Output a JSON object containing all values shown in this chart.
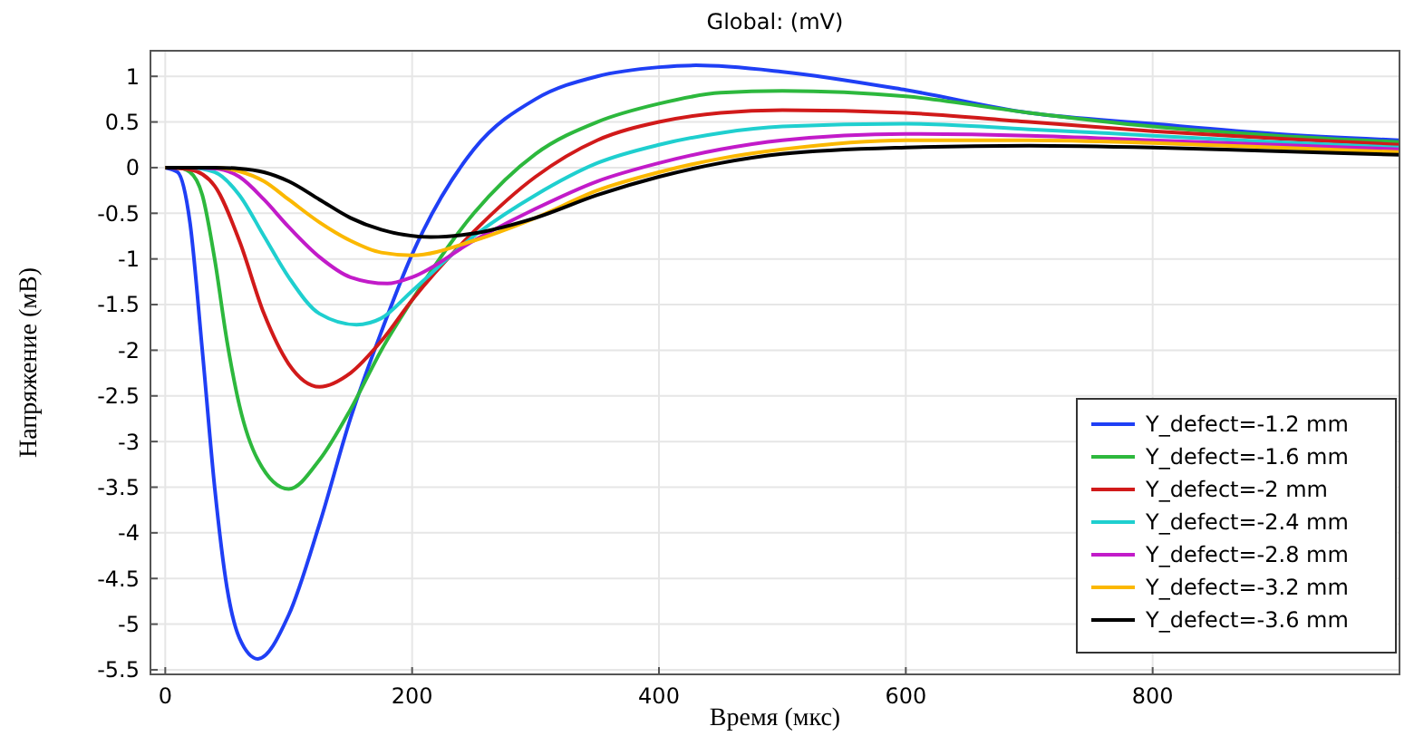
{
  "chart_data": {
    "type": "line",
    "title": "Global:  (mV)",
    "xlabel": "Время (мкс)",
    "ylabel": "Напряжение (мВ)",
    "xlim": [
      -12,
      1000
    ],
    "ylim": [
      -5.55,
      1.28
    ],
    "xticks": [
      0,
      200,
      400,
      600,
      800
    ],
    "yticks": [
      1,
      0.5,
      0,
      -0.5,
      -1,
      -1.5,
      -2,
      -2.5,
      -3,
      -3.5,
      -4,
      -4.5,
      -5,
      -5.5
    ],
    "grid": true,
    "legend": "bottom right",
    "marker": "none",
    "line_style": "solid",
    "series": [
      {
        "name": "Y_defect=-1.2 mm",
        "color": "#1f3ff5",
        "x": [
          0,
          10,
          20,
          30,
          40,
          50,
          60,
          75,
          100,
          125,
          150,
          175,
          200,
          250,
          300,
          350,
          400,
          430,
          500,
          600,
          700,
          800,
          900,
          1000
        ],
        "values": [
          0,
          -0.05,
          -0.6,
          -2.0,
          -3.5,
          -4.6,
          -5.15,
          -5.38,
          -4.9,
          -3.9,
          -2.75,
          -1.8,
          -0.95,
          0.2,
          0.75,
          1.0,
          1.1,
          1.12,
          1.05,
          0.85,
          0.6,
          0.48,
          0.37,
          0.3
        ]
      },
      {
        "name": "Y_defect=-1.6 mm",
        "color": "#2db83d",
        "x": [
          0,
          10,
          20,
          30,
          40,
          50,
          60,
          75,
          100,
          125,
          150,
          175,
          200,
          250,
          300,
          350,
          400,
          450,
          500,
          600,
          700,
          800,
          900,
          1000
        ],
        "values": [
          0,
          0,
          -0.05,
          -0.3,
          -1.0,
          -1.9,
          -2.6,
          -3.2,
          -3.52,
          -3.2,
          -2.65,
          -2.0,
          -1.45,
          -0.5,
          0.15,
          0.5,
          0.7,
          0.82,
          0.84,
          0.78,
          0.6,
          0.45,
          0.35,
          0.28
        ]
      },
      {
        "name": "Y_defect=-2 mm",
        "color": "#d11a1a",
        "x": [
          0,
          20,
          40,
          60,
          80,
          100,
          125,
          150,
          175,
          200,
          250,
          300,
          350,
          400,
          450,
          500,
          600,
          700,
          800,
          900,
          1000
        ],
        "values": [
          0,
          -0.02,
          -0.2,
          -0.8,
          -1.6,
          -2.15,
          -2.4,
          -2.25,
          -1.9,
          -1.45,
          -0.7,
          -0.1,
          0.3,
          0.5,
          0.6,
          0.63,
          0.6,
          0.5,
          0.4,
          0.32,
          0.25
        ]
      },
      {
        "name": "Y_defect=-2.4 mm",
        "color": "#1fcfcf",
        "x": [
          0,
          20,
          40,
          60,
          80,
          100,
          125,
          155,
          175,
          200,
          250,
          300,
          350,
          400,
          450,
          500,
          600,
          700,
          800,
          900,
          1000
        ],
        "values": [
          0,
          0,
          -0.05,
          -0.3,
          -0.75,
          -1.2,
          -1.6,
          -1.72,
          -1.65,
          -1.35,
          -0.75,
          -0.3,
          0.05,
          0.25,
          0.38,
          0.45,
          0.48,
          0.42,
          0.35,
          0.28,
          0.22
        ]
      },
      {
        "name": "Y_defect=-2.8 mm",
        "color": "#c21bc9",
        "x": [
          0,
          20,
          40,
          60,
          80,
          100,
          125,
          150,
          180,
          200,
          250,
          300,
          350,
          400,
          450,
          500,
          600,
          700,
          800,
          900,
          1000
        ],
        "values": [
          0,
          0,
          -0.01,
          -0.1,
          -0.35,
          -0.65,
          -0.98,
          -1.2,
          -1.27,
          -1.2,
          -0.8,
          -0.45,
          -0.15,
          0.05,
          0.2,
          0.3,
          0.37,
          0.35,
          0.3,
          0.25,
          0.2
        ]
      },
      {
        "name": "Y_defect=-3.2 mm",
        "color": "#fbb800",
        "x": [
          0,
          20,
          40,
          60,
          80,
          100,
          125,
          150,
          175,
          200,
          250,
          300,
          350,
          400,
          450,
          500,
          600,
          700,
          800,
          900,
          1000
        ],
        "values": [
          0,
          0,
          0,
          -0.04,
          -0.15,
          -0.35,
          -0.6,
          -0.8,
          -0.93,
          -0.96,
          -0.8,
          -0.55,
          -0.25,
          -0.05,
          0.1,
          0.2,
          0.3,
          0.3,
          0.27,
          0.22,
          0.17
        ]
      },
      {
        "name": "Y_defect=-3.6 mm",
        "color": "#000000",
        "x": [
          0,
          20,
          40,
          60,
          80,
          100,
          125,
          150,
          175,
          215,
          250,
          300,
          350,
          400,
          450,
          500,
          600,
          700,
          800,
          900,
          1000
        ],
        "values": [
          0,
          0,
          0,
          -0.01,
          -0.05,
          -0.15,
          -0.35,
          -0.55,
          -0.68,
          -0.76,
          -0.72,
          -0.55,
          -0.3,
          -0.1,
          0.05,
          0.15,
          0.22,
          0.24,
          0.22,
          0.18,
          0.14
        ]
      }
    ]
  }
}
